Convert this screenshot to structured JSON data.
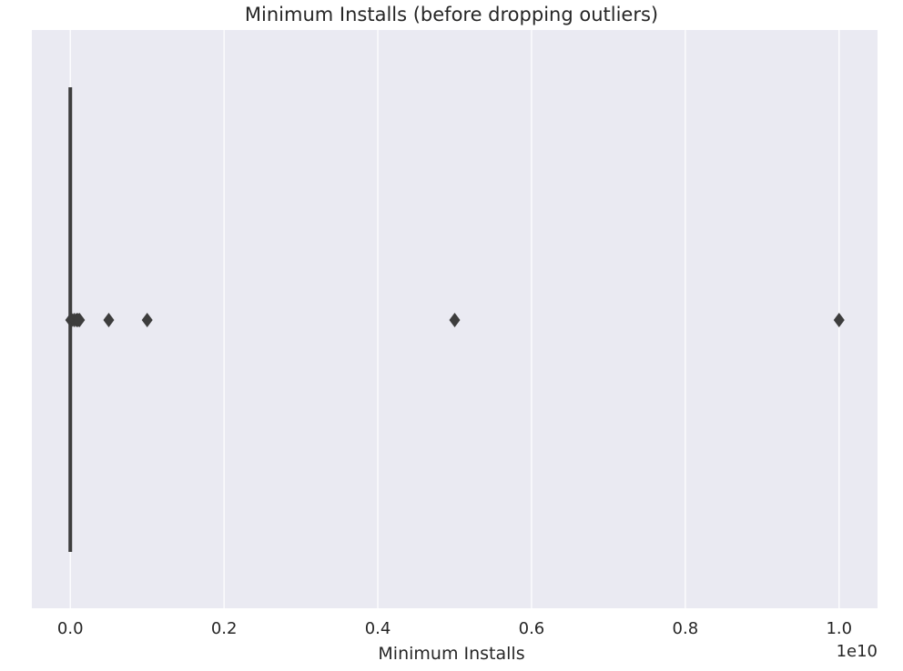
{
  "chart_data": {
    "type": "box",
    "orientation": "horizontal",
    "title": "Minimum Installs (before dropping outliers)",
    "xlabel": "Minimum Installs",
    "x_offset_text": "1e10",
    "xlim": [
      -0.05,
      1.05
    ],
    "x_ticks": [
      0.0,
      0.2,
      0.4,
      0.6,
      0.8,
      1.0
    ],
    "x_tick_labels": [
      "0.0",
      "0.2",
      "0.4",
      "0.6",
      "0.8",
      "1.0"
    ],
    "grid": true,
    "box": {
      "min": 0.0,
      "q1": 0.0,
      "median": 0.0,
      "q3": 0.0,
      "whisker_low": 0.0,
      "whisker_high": 0.0
    },
    "outliers": [
      0.0005,
      0.001,
      0.002,
      0.005,
      0.008,
      0.01,
      0.012,
      0.05,
      0.1,
      0.5,
      1.0
    ],
    "colors": {
      "background": "#eaeaf2",
      "grid": "#ffffff",
      "box": "#3d3d3d",
      "text": "#262626"
    }
  }
}
